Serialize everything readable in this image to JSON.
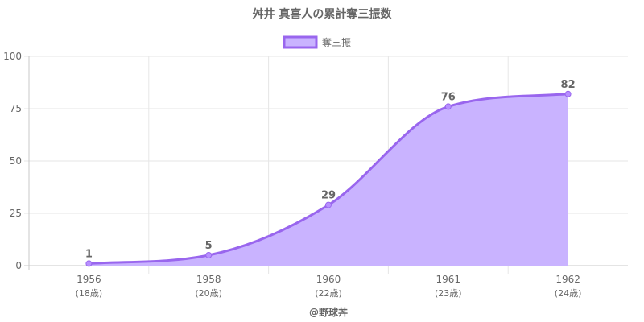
{
  "chart_data": {
    "type": "area",
    "title": "舛井 真喜人の累計奪三振数",
    "legend": {
      "position": "top",
      "label": "奪三振"
    },
    "x": [
      "1956",
      "1958",
      "1960",
      "1961",
      "1962"
    ],
    "x_sublabels": [
      "(18歳)",
      "(20歳)",
      "(22歳)",
      "(23歳)",
      "(24歳)"
    ],
    "series": [
      {
        "name": "奪三振",
        "values": [
          1,
          5,
          29,
          76,
          82
        ]
      }
    ],
    "ylim": [
      0,
      100
    ],
    "yticks": [
      0,
      25,
      50,
      75,
      100
    ],
    "grid": true,
    "colors": {
      "line": "#9966ee",
      "fill": "#c9b3ff",
      "point": "#b890ff"
    }
  },
  "credit": "@野球丼"
}
